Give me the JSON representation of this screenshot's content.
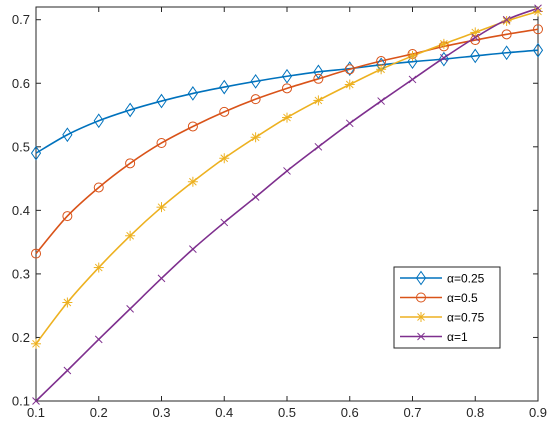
{
  "chart_data": {
    "type": "line",
    "title": "",
    "xlabel": "",
    "ylabel": "",
    "xlim": [
      0.1,
      0.9
    ],
    "ylim": [
      0.1,
      0.72
    ],
    "x_ticks": [
      "0.1",
      "0.2",
      "0.3",
      "0.4",
      "0.5",
      "0.6",
      "0.7",
      "0.8",
      "0.9"
    ],
    "y_ticks": [
      "0.1",
      "0.2",
      "0.3",
      "0.4",
      "0.5",
      "0.6",
      "0.7"
    ],
    "grid": false,
    "legend_position": "lower-right",
    "x": [
      0.1,
      0.15,
      0.2,
      0.25,
      0.3,
      0.35,
      0.4,
      0.45,
      0.5,
      0.55,
      0.6,
      0.65,
      0.7,
      0.75,
      0.8,
      0.85,
      0.9
    ],
    "series": [
      {
        "name": "α=0.25",
        "color": "#0072BD",
        "marker": "diamond",
        "values": [
          0.49,
          0.519,
          0.541,
          0.558,
          0.572,
          0.584,
          0.594,
          0.603,
          0.611,
          0.618,
          0.623,
          0.629,
          0.634,
          0.638,
          0.643,
          0.648,
          0.652
        ]
      },
      {
        "name": "α=0.5",
        "color": "#D95319",
        "marker": "circle",
        "values": [
          0.332,
          0.391,
          0.436,
          0.474,
          0.506,
          0.532,
          0.555,
          0.575,
          0.592,
          0.607,
          0.622,
          0.635,
          0.646,
          0.658,
          0.668,
          0.677,
          0.685
        ]
      },
      {
        "name": "α=0.75",
        "color": "#EDB120",
        "marker": "asterisk",
        "values": [
          0.19,
          0.255,
          0.31,
          0.36,
          0.405,
          0.445,
          0.482,
          0.515,
          0.546,
          0.573,
          0.598,
          0.622,
          0.643,
          0.662,
          0.68,
          0.698,
          0.713
        ]
      },
      {
        "name": "α=1",
        "color": "#7E2F8E",
        "marker": "x",
        "values": [
          0.1,
          0.148,
          0.197,
          0.245,
          0.293,
          0.339,
          0.381,
          0.421,
          0.462,
          0.5,
          0.537,
          0.572,
          0.606,
          0.64,
          0.672,
          0.7,
          0.718
        ]
      }
    ]
  }
}
